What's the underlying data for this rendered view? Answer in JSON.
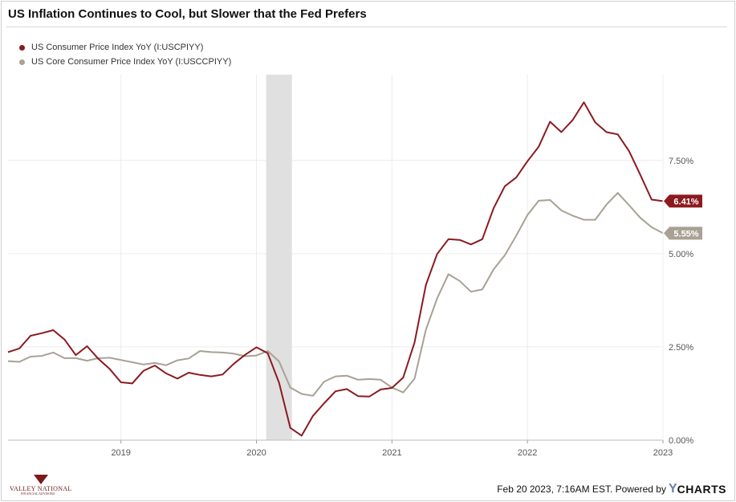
{
  "title": "US Inflation Continues to Cool, but Slower that the Fed Prefers",
  "footer": {
    "timestamp": "Feb 20 2023, 7:16AM EST. Powered by",
    "brand_y": "Y",
    "brand_rest": "CHARTS"
  },
  "logo": {
    "name": "VALLEY NATIONAL",
    "tagline": "FINANCIAL ADVISORS"
  },
  "colors": {
    "cpi": "#8b1a1f",
    "core": "#a8a194",
    "recession": "#e0e0e0",
    "grid": "#ececec"
  },
  "chart_data": {
    "type": "line",
    "title": "US Inflation Continues to Cool, but Slower that the Fed Prefers",
    "xlabel": "",
    "ylabel": "",
    "xlim": [
      "2018-03",
      "2023-01"
    ],
    "ylim": [
      0,
      10
    ],
    "y_ticks": [
      "0.00%",
      "2.50%",
      "5.00%",
      "7.50%"
    ],
    "y_tick_values": [
      0,
      2.5,
      5,
      7.5
    ],
    "x_ticks": [
      "2019",
      "2020",
      "2021",
      "2022",
      "2023"
    ],
    "x_tick_values": [
      "2019-01",
      "2020-01",
      "2021-01",
      "2022-01",
      "2023-01"
    ],
    "grid": true,
    "legend_position": "top-left",
    "recession_shading": {
      "start": "2020-02",
      "end": "2020-04"
    },
    "dates": [
      "2018-03",
      "2018-04",
      "2018-05",
      "2018-06",
      "2018-07",
      "2018-08",
      "2018-09",
      "2018-10",
      "2018-11",
      "2018-12",
      "2019-01",
      "2019-02",
      "2019-03",
      "2019-04",
      "2019-05",
      "2019-06",
      "2019-07",
      "2019-08",
      "2019-09",
      "2019-10",
      "2019-11",
      "2019-12",
      "2020-01",
      "2020-02",
      "2020-03",
      "2020-04",
      "2020-05",
      "2020-06",
      "2020-07",
      "2020-08",
      "2020-09",
      "2020-10",
      "2020-11",
      "2020-12",
      "2021-01",
      "2021-02",
      "2021-03",
      "2021-04",
      "2021-05",
      "2021-06",
      "2021-07",
      "2021-08",
      "2021-09",
      "2021-10",
      "2021-11",
      "2021-12",
      "2022-01",
      "2022-02",
      "2022-03",
      "2022-04",
      "2022-05",
      "2022-06",
      "2022-07",
      "2022-08",
      "2022-09",
      "2022-10",
      "2022-11",
      "2022-12",
      "2023-01"
    ],
    "series": [
      {
        "name": "US Consumer Price Index YoY (I:USCPIYY)",
        "color": "#8b1a1f",
        "last_label": "6.41%",
        "values": [
          2.36,
          2.46,
          2.8,
          2.87,
          2.95,
          2.7,
          2.28,
          2.52,
          2.18,
          1.91,
          1.55,
          1.52,
          1.86,
          2.0,
          1.79,
          1.65,
          1.81,
          1.75,
          1.71,
          1.76,
          2.05,
          2.29,
          2.49,
          2.33,
          1.54,
          0.33,
          0.12,
          0.65,
          0.99,
          1.31,
          1.37,
          1.18,
          1.17,
          1.36,
          1.4,
          1.68,
          2.62,
          4.16,
          4.99,
          5.39,
          5.37,
          5.25,
          5.39,
          6.22,
          6.81,
          7.04,
          7.48,
          7.87,
          8.54,
          8.26,
          8.58,
          9.06,
          8.52,
          8.26,
          8.2,
          7.75,
          7.11,
          6.45,
          6.41
        ]
      },
      {
        "name": "US Core Consumer Price Index YoY (I:USCCPIYY)",
        "color": "#a8a194",
        "last_label": "5.55%",
        "values": [
          2.12,
          2.1,
          2.24,
          2.26,
          2.35,
          2.2,
          2.2,
          2.13,
          2.2,
          2.21,
          2.15,
          2.09,
          2.03,
          2.07,
          2.01,
          2.14,
          2.19,
          2.39,
          2.36,
          2.35,
          2.32,
          2.25,
          2.27,
          2.39,
          2.11,
          1.41,
          1.24,
          1.19,
          1.57,
          1.71,
          1.73,
          1.62,
          1.64,
          1.62,
          1.41,
          1.28,
          1.65,
          2.96,
          3.8,
          4.45,
          4.27,
          3.98,
          4.04,
          4.58,
          4.96,
          5.48,
          6.04,
          6.42,
          6.44,
          6.16,
          6.02,
          5.91,
          5.91,
          6.32,
          6.63,
          6.3,
          5.96,
          5.71,
          5.55
        ]
      }
    ]
  }
}
